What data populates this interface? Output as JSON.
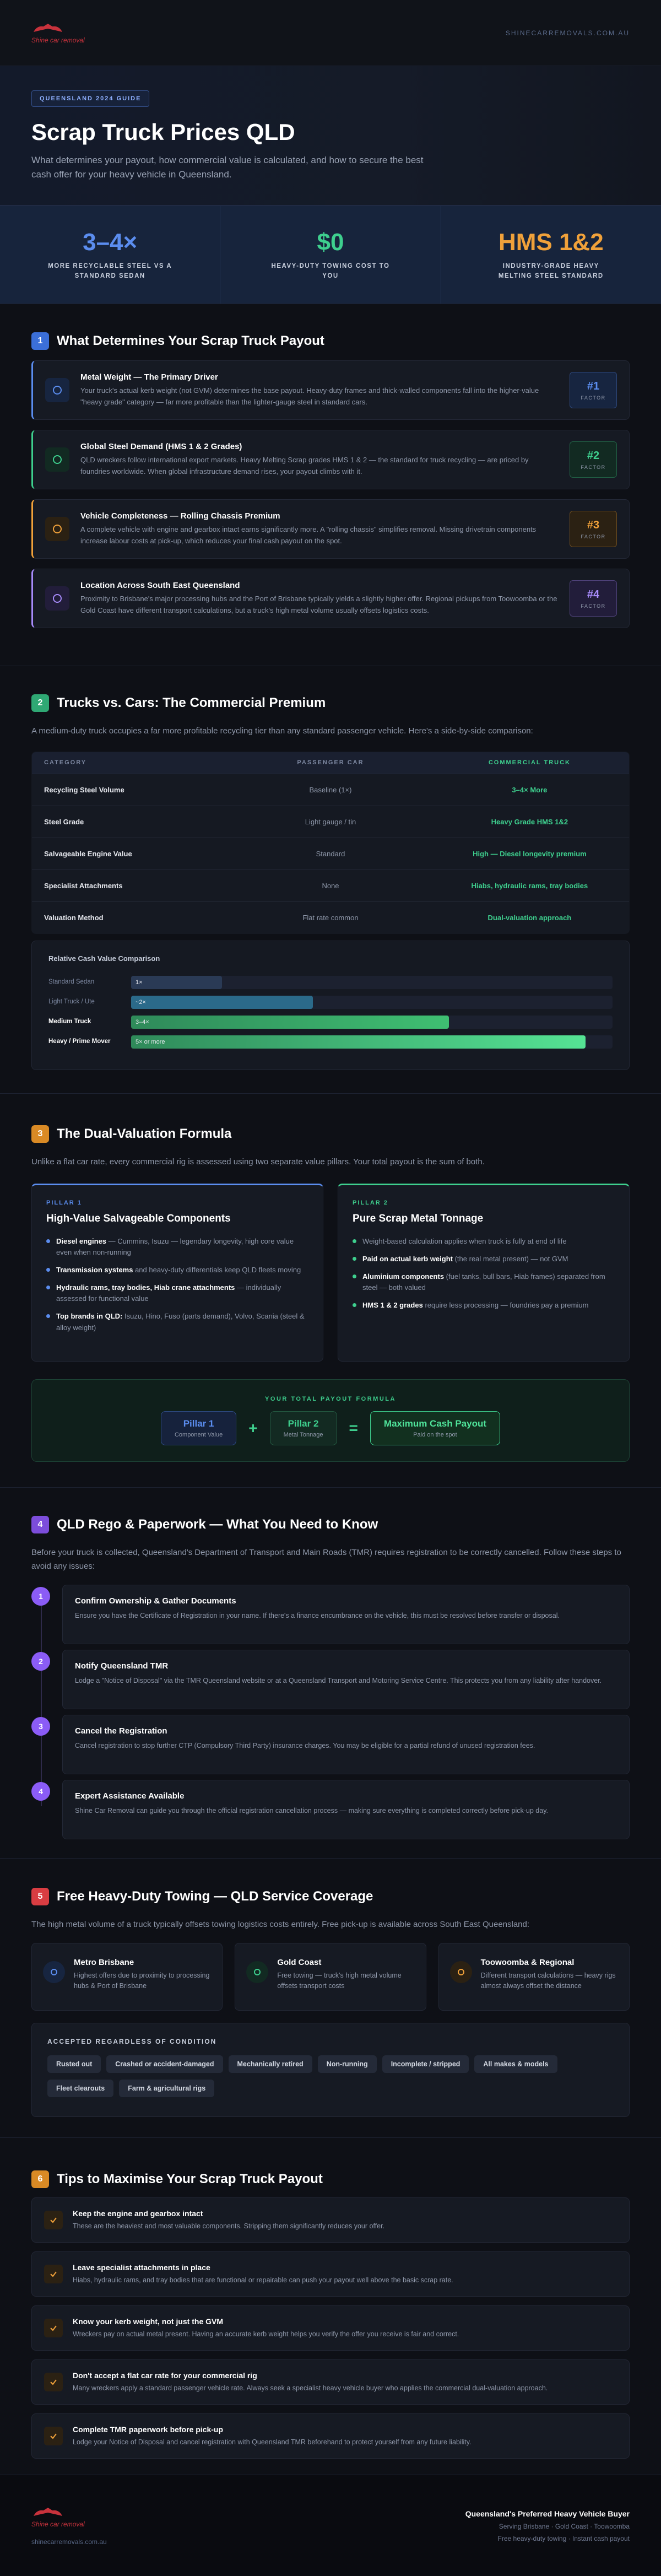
{
  "header": {
    "logo": "Shine car removal",
    "site": "SHINECARREMOVALS.COM.AU"
  },
  "hero": {
    "badge": "QUEENSLAND 2024 GUIDE",
    "title": "Scrap Truck Prices QLD",
    "subtitle": "What determines your payout, how commercial value is calculated, and how to secure the best cash offer for your heavy vehicle in Queensland."
  },
  "stats": [
    {
      "value": "3–4×",
      "label": "MORE RECYCLABLE STEEL VS A STANDARD SEDAN"
    },
    {
      "value": "$0",
      "label": "HEAVY-DUTY TOWING COST TO YOU"
    },
    {
      "value": "HMS 1&2",
      "label": "INDUSTRY-GRADE HEAVY MELTING STEEL STANDARD"
    }
  ],
  "factors": {
    "num": "1",
    "title": "What Determines Your Scrap Truck Payout",
    "cards": [
      {
        "title": "Metal Weight — The Primary Driver",
        "text": "Your truck's actual kerb weight (not GVM) determines the base payout. Heavy-duty frames and thick-walled components fall into the higher-value \"heavy grade\" category — far more profitable than the lighter-gauge steel in standard cars.",
        "rank": "#1",
        "rank_label": "FACTOR"
      },
      {
        "title": "Global Steel Demand (HMS 1 & 2 Grades)",
        "text": "QLD wreckers follow international export markets. Heavy Melting Scrap grades HMS 1 & 2 — the standard for truck recycling — are priced by foundries worldwide. When global infrastructure demand rises, your payout climbs with it.",
        "rank": "#2",
        "rank_label": "FACTOR"
      },
      {
        "title": "Vehicle Completeness — Rolling Chassis Premium",
        "text": "A complete vehicle with engine and gearbox intact earns significantly more. A \"rolling chassis\" simplifies removal. Missing drivetrain components increase labour costs at pick-up, which reduces your final cash payout on the spot.",
        "rank": "#3",
        "rank_label": "FACTOR"
      },
      {
        "title": "Location Across South East Queensland",
        "text": "Proximity to Brisbane's major processing hubs and the Port of Brisbane typically yields a slightly higher offer. Regional pickups from Toowoomba or the Gold Coast have different transport calculations, but a truck's high metal volume usually offsets logistics costs.",
        "rank": "#4",
        "rank_label": "FACTOR"
      }
    ]
  },
  "comparison": {
    "num": "2",
    "title": "Trucks vs. Cars: The Commercial Premium",
    "intro": "A medium-duty truck occupies a far more profitable recycling tier than any standard passenger vehicle. Here's a side-by-side comparison:",
    "table": {
      "header": [
        "CATEGORY",
        "PASSENGER CAR",
        "COMMERCIAL TRUCK"
      ],
      "rows": [
        [
          "Recycling Steel Volume",
          "Baseline (1×)",
          "3–4× More"
        ],
        [
          "Steel Grade",
          "Light gauge / tin",
          "Heavy Grade HMS 1&2"
        ],
        [
          "Salvageable Engine Value",
          "Standard",
          "High — Diesel longevity premium"
        ],
        [
          "Specialist Attachments",
          "None",
          "Hiabs, hydraulic rams, tray bodies"
        ],
        [
          "Valuation Method",
          "Flat rate common",
          "Dual-valuation approach"
        ]
      ]
    },
    "chart": {
      "title": "Relative Cash Value Comparison",
      "categories": [
        "Standard Sedan",
        "Light Truck / Ute",
        "Medium Truck",
        "Heavy / Prime Mover"
      ],
      "values": [
        1,
        2,
        3.5,
        5
      ],
      "value_labels": [
        "1×",
        "~2×",
        "3–4×",
        "5× or more"
      ],
      "xlim": [
        0,
        5.3
      ]
    }
  },
  "valuation": {
    "num": "3",
    "title": "The Dual-Valuation Formula",
    "intro": "Unlike a flat car rate, every commercial rig is assessed using two separate value pillars. Your total payout is the sum of both.",
    "pillars": [
      {
        "tag": "PILLAR 1",
        "title": "High-Value Salvageable Components",
        "items": [
          {
            "bold": "Diesel engines",
            "text": " — Cummins, Isuzu — legendary longevity, high core value even when non-running"
          },
          {
            "bold": "Transmission systems",
            "text": " and heavy-duty differentials keep QLD fleets moving"
          },
          {
            "bold": "Hydraulic rams, tray bodies, Hiab crane attachments",
            "text": " — individually assessed for functional value"
          },
          {
            "bold": "Top brands in QLD:",
            "text": " Isuzu, Hino, Fuso (parts demand), Volvo, Scania (steel & alloy weight)"
          }
        ]
      },
      {
        "tag": "PILLAR 2",
        "title": "Pure Scrap Metal Tonnage",
        "items": [
          {
            "text": "Weight-based calculation applies when truck is fully at end of life"
          },
          {
            "bold": "Paid on actual kerb weight",
            "text": " (the real metal present) — not GVM"
          },
          {
            "bold": "Aluminium components",
            "text": " (fuel tanks, bull bars, Hiab frames) separated from steel — both valued"
          },
          {
            "bold": "HMS 1 & 2 grades",
            "text": " require less processing — foundries pay a premium"
          }
        ]
      }
    ],
    "formula": {
      "title": "YOUR TOTAL PAYOUT FORMULA",
      "terms": [
        {
          "name": "Pillar 1",
          "sub": "Component Value"
        },
        {
          "name": "Pillar 2",
          "sub": "Metal Tonnage"
        },
        {
          "name": "Maximum Cash Payout",
          "sub": "Paid on the spot"
        }
      ],
      "ops": [
        "+",
        "="
      ]
    }
  },
  "rego": {
    "num": "4",
    "title": "QLD Rego & Paperwork — What You Need to Know",
    "intro": "Before your truck is collected, Queensland's Department of Transport and Main Roads (TMR) requires registration to be correctly cancelled. Follow these steps to avoid any issues:",
    "steps": [
      {
        "num": "1",
        "title": "Confirm Ownership & Gather Documents",
        "text": "Ensure you have the Certificate of Registration in your name. If there's a finance encumbrance on the vehicle, this must be resolved before transfer or disposal."
      },
      {
        "num": "2",
        "title": "Notify Queensland TMR",
        "text": "Lodge a \"Notice of Disposal\" via the TMR Queensland website or at a Queensland Transport and Motoring Service Centre. This protects you from any liability after handover."
      },
      {
        "num": "3",
        "title": "Cancel the Registration",
        "text": "Cancel registration to stop further CTP (Compulsory Third Party) insurance charges. You may be eligible for a partial refund of unused registration fees."
      },
      {
        "num": "4",
        "title": "Expert Assistance Available",
        "text": "Shine Car Removal can guide you through the official registration cancellation process — making sure everything is completed correctly before pick-up day."
      }
    ]
  },
  "towing": {
    "num": "5",
    "title": "Free Heavy-Duty Towing — QLD Service Coverage",
    "intro": "The high metal volume of a truck typically offsets towing logistics costs entirely. Free pick-up is available across South East Queensland:",
    "areas": [
      {
        "title": "Metro Brisbane",
        "text": "Highest offers due to proximity to processing hubs & Port of Brisbane"
      },
      {
        "title": "Gold Coast",
        "text": "Free towing — truck's high metal volume offsets transport costs"
      },
      {
        "title": "Toowoomba & Regional",
        "text": "Different transport calculations — heavy rigs almost always offset the distance"
      }
    ],
    "accepted": {
      "title": "ACCEPTED REGARDLESS OF CONDITION",
      "tags": [
        "Rusted out",
        "Crashed or accident-damaged",
        "Mechanically retired",
        "Non-running",
        "Incomplete / stripped",
        "All makes & models",
        "Fleet clearouts",
        "Farm & agricultural rigs"
      ]
    }
  },
  "tips": {
    "num": "6",
    "title": "Tips to Maximise Your Scrap Truck Payout",
    "items": [
      {
        "title": "Keep the engine and gearbox intact",
        "text": "These are the heaviest and most valuable components. Stripping them significantly reduces your offer."
      },
      {
        "title": "Leave specialist attachments in place",
        "text": "Hiabs, hydraulic rams, and tray bodies that are functional or repairable can push your payout well above the basic scrap rate."
      },
      {
        "title": "Know your kerb weight, not just the GVM",
        "text": "Wreckers pay on actual metal present. Having an accurate kerb weight helps you verify the offer you receive is fair and correct."
      },
      {
        "title": "Don't accept a flat car rate for your commercial rig",
        "text": "Many wreckers apply a standard passenger vehicle rate. Always seek a specialist heavy vehicle buyer who applies the commercial dual-valuation approach."
      },
      {
        "title": "Complete TMR paperwork before pick-up",
        "text": "Lodge your Notice of Disposal and cancel registration with Queensland TMR beforehand to protect yourself from any future liability."
      }
    ]
  },
  "footer": {
    "logo": "Shine car removal",
    "site": "shinecarremovals.com.au",
    "tagline": "Queensland's Preferred Heavy Vehicle Buyer",
    "areas": "Serving Brisbane · Gold Coast · Toowoomba",
    "service": "Free heavy-duty towing · Instant cash payout"
  }
}
